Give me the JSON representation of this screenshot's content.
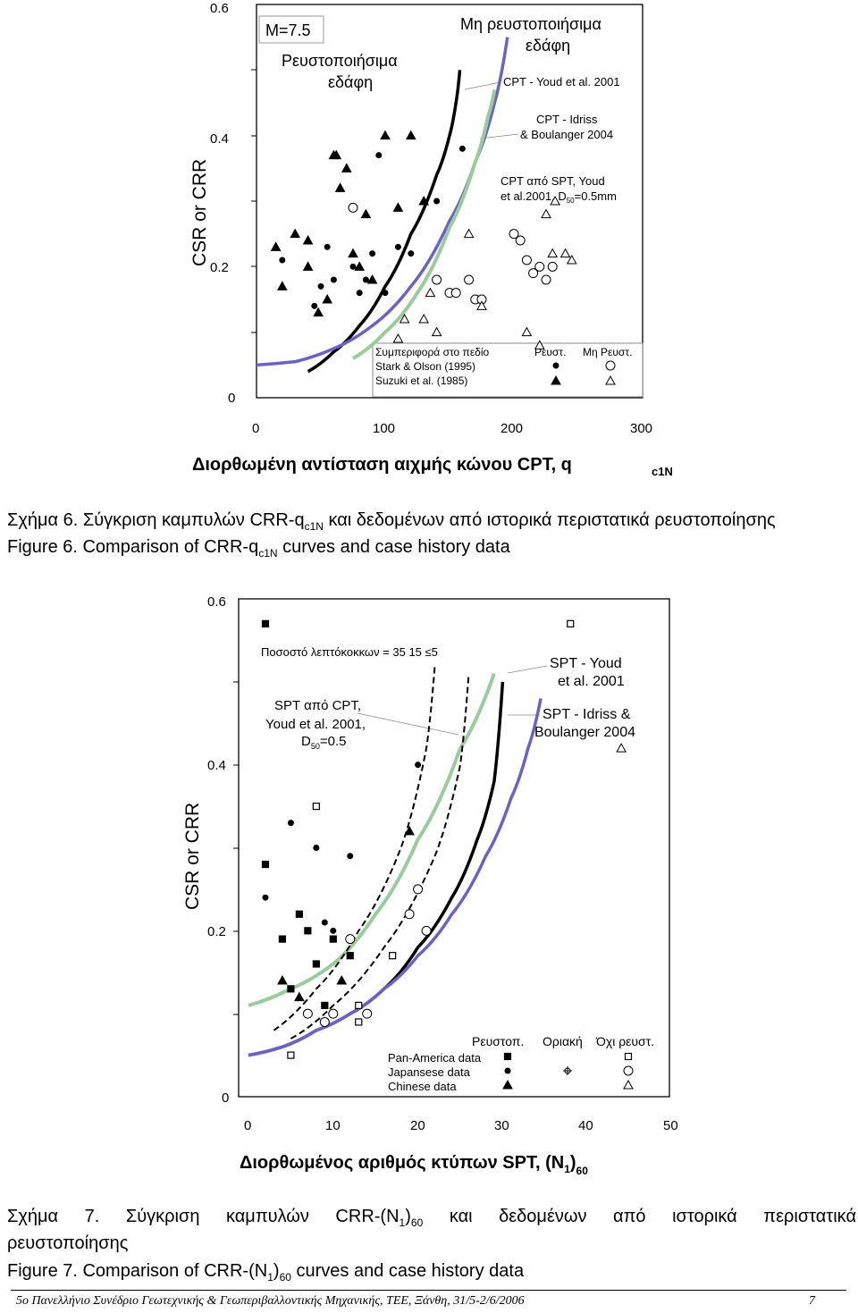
{
  "figure6": {
    "y_axis_label": "CSR or CRR",
    "x_axis_label": "Διορθωμένη αντίσταση αιχμής κώνου CPT, q",
    "x_axis_label_sub": "c1N",
    "y_ticks": [
      "0.6",
      "0.4",
      "0.2",
      "0"
    ],
    "x_ticks": [
      "0",
      "100",
      "200",
      "300"
    ],
    "magnitude_label": "M=7.5",
    "region_liquefiable": [
      "Ρευστοποιήσιμα",
      "εδάφη"
    ],
    "region_nonliquefiable": [
      "Μη ρευστοποιήσιμα",
      "εδάφη"
    ],
    "curve_label_youd": "CPT - Youd et al. 2001",
    "curve_label_idriss": [
      "CPT - Idriss",
      "& Boulanger 2004"
    ],
    "curve_label_spt": [
      "CPT από SPT, Youd",
      "et al.2001, D",
      "50",
      "=0.5mm"
    ],
    "legend": {
      "header": "Συμπεριφορά στο πεδίο",
      "col_liq": "Ρευστ.",
      "col_nonliq": "Μη Ρευστ.",
      "rows": [
        "Stark & Olson (1995)",
        "Suzuki et al. (1985)"
      ]
    },
    "caption_gr": "Σχήμα 6. Σύγκριση καμπυλών CRR-q",
    "caption_gr_sub": "c1N",
    "caption_gr_rest": "και δεδομένων από ιστορικά περιστατικά ρευστοποίησης",
    "caption_en": "Figure 6. Comparison of CRR-q",
    "caption_en_sub": "c1N",
    "caption_en_rest": "curves and case history data"
  },
  "figure7": {
    "y_axis_label": "CSR or CRR",
    "x_axis_label": "Διορθωμένος αριθμός κτύπων SPT, (N",
    "x_axis_label_sub1": "1",
    "x_axis_label_mid": ")",
    "x_axis_label_sub2": "60",
    "y_ticks": [
      "0.6",
      "0.4",
      "0.2",
      "0"
    ],
    "x_ticks": [
      "0",
      "10",
      "20",
      "30",
      "40",
      "50"
    ],
    "fines_label": "Ποσοστό λεπτόκοκκων = 35   15   ≤5",
    "curve_label_spt_cpt": [
      "SPT από CPT,",
      "Youd et al. 2001,",
      "D",
      "50",
      "=0.5"
    ],
    "curve_label_youd": [
      "SPT - Youd",
      "et al. 2001"
    ],
    "curve_label_idriss": [
      "SPT - Idriss &",
      "Boulanger 2004"
    ],
    "legend": {
      "col_liq": "Ρευστοπ.",
      "col_marg": "Οριακή",
      "col_nonliq": "Όχι ρευστ.",
      "rows": [
        "Pan-America data",
        "Japansese data",
        "Chinese data"
      ]
    },
    "caption_gr_1": "Σχήμα 7. Σύγκριση καμπυλών CRR-(N",
    "caption_gr_sub1": "1",
    "caption_gr_2": ")",
    "caption_gr_sub2": "60",
    "caption_gr_3": "και δεδομένων από ιστορικά περιστατικά",
    "caption_gr_line2": "ρευστοποίησης",
    "caption_en_1": "Figure 7. Comparison of CRR-(N",
    "caption_en_sub1": "1",
    "caption_en_2": ")",
    "caption_en_sub2": "60",
    "caption_en_3": "curves and case history data"
  },
  "footer": {
    "text": "5ο Πανελλήνιο Συνέδριο Γεωτεχνικής & Γεωπεριβαλλοντικής Μηχανικής, ΤΕΕ, Ξάνθη, 31/5-2/6/2006",
    "page": "7"
  },
  "colors": {
    "blue_curve": "#6a62c6",
    "green_curve": "#9acb9a",
    "black_curve": "#000000"
  },
  "chart_data": [
    {
      "type": "scatter",
      "xlim": [
        0,
        300
      ],
      "ylim": [
        0,
        0.6
      ],
      "grid": false,
      "legend_position": "bottom-right",
      "series": [
        {
          "name": "CPT - Youd et al. 2001",
          "type": "line",
          "x": [
            40,
            60,
            80,
            100,
            120,
            140,
            150,
            155,
            158
          ],
          "y": [
            0.04,
            0.07,
            0.11,
            0.17,
            0.25,
            0.34,
            0.4,
            0.45,
            0.5
          ]
        },
        {
          "name": "CPT - Idriss & Boulanger 2004",
          "type": "line",
          "x": [
            0,
            30,
            60,
            90,
            120,
            150,
            170,
            185,
            195
          ],
          "y": [
            0.05,
            0.055,
            0.075,
            0.11,
            0.17,
            0.27,
            0.36,
            0.45,
            0.55
          ]
        },
        {
          "name": "CPT από SPT, Youd et al.2001, D50=0.5mm",
          "type": "line",
          "x": [
            75,
            100,
            125,
            150,
            170,
            180,
            185
          ],
          "y": [
            0.06,
            0.1,
            0.16,
            0.26,
            0.36,
            0.43,
            0.47
          ]
        },
        {
          "name": "Stark & Olson (1995)",
          "role": "liquefied",
          "x": [
            20,
            50,
            55,
            80,
            90,
            95,
            100,
            110,
            120,
            140,
            160,
            45,
            60,
            75,
            85
          ],
          "y": [
            0.21,
            0.17,
            0.23,
            0.16,
            0.22,
            0.37,
            0.16,
            0.23,
            0.22,
            0.3,
            0.38,
            0.14,
            0.18,
            0.2,
            0.18
          ]
        },
        {
          "name": "Suzuki et al. (1985)",
          "role": "liquefied",
          "x": [
            15,
            20,
            30,
            40,
            48,
            60,
            62,
            65,
            70,
            80,
            85,
            90,
            100,
            110,
            120,
            130,
            40,
            55,
            75
          ],
          "y": [
            0.23,
            0.17,
            0.25,
            0.24,
            0.13,
            0.37,
            0.37,
            0.32,
            0.35,
            0.2,
            0.28,
            0.18,
            0.4,
            0.29,
            0.4,
            0.3,
            0.2,
            0.15,
            0.22
          ]
        },
        {
          "name": "Stark & Olson (1995)",
          "role": "non-liquefied",
          "x": [
            75,
            140,
            150,
            155,
            165,
            170,
            175,
            200,
            205,
            210,
            215,
            220,
            225,
            230
          ],
          "y": [
            0.29,
            0.18,
            0.16,
            0.16,
            0.18,
            0.15,
            0.15,
            0.25,
            0.24,
            0.21,
            0.19,
            0.2,
            0.18,
            0.2
          ]
        },
        {
          "name": "Suzuki et al. (1985)",
          "role": "non-liquefied",
          "x": [
            110,
            115,
            130,
            135,
            140,
            165,
            175,
            210,
            220,
            225,
            230,
            232,
            240,
            245
          ],
          "y": [
            0.09,
            0.12,
            0.12,
            0.16,
            0.1,
            0.25,
            0.14,
            0.1,
            0.08,
            0.28,
            0.22,
            0.3,
            0.22,
            0.21
          ]
        }
      ]
    },
    {
      "type": "scatter",
      "xlim": [
        0,
        50
      ],
      "ylim": [
        0,
        0.6
      ],
      "grid": false,
      "legend_position": "bottom-right",
      "series": [
        {
          "name": "SPT - Youd et al. 2001",
          "type": "line",
          "x": [
            0,
            4,
            8,
            12,
            16,
            20,
            24,
            27,
            29,
            30
          ],
          "y": [
            0.05,
            0.06,
            0.08,
            0.1,
            0.13,
            0.18,
            0.24,
            0.31,
            0.38,
            0.5
          ]
        },
        {
          "name": "SPT - Idriss & Boulanger 2004",
          "type": "line",
          "x": [
            0,
            4,
            8,
            12,
            16,
            20,
            24,
            28,
            31,
            33,
            34.5
          ],
          "y": [
            0.05,
            0.06,
            0.08,
            0.1,
            0.13,
            0.17,
            0.22,
            0.29,
            0.36,
            0.42,
            0.48
          ]
        },
        {
          "name": "SPT από CPT, Youd et al. 2001, D50=0.5",
          "type": "line",
          "x": [
            0,
            5,
            10,
            15,
            20,
            25,
            29
          ],
          "y": [
            0.11,
            0.13,
            0.16,
            0.22,
            0.31,
            0.42,
            0.51
          ]
        },
        {
          "name": "Ποσοστό λεπτόκοκκων = 35",
          "type": "line",
          "style": "dashed",
          "x": [
            3,
            8,
            13,
            18,
            21,
            22
          ],
          "y": [
            0.08,
            0.13,
            0.2,
            0.3,
            0.42,
            0.52
          ]
        },
        {
          "name": "Ποσοστό λεπτόκοκκων = 15",
          "type": "line",
          "style": "dashed",
          "x": [
            5,
            10,
            16,
            22,
            25,
            26
          ],
          "y": [
            0.07,
            0.11,
            0.18,
            0.29,
            0.4,
            0.51
          ]
        },
        {
          "name": "Pan-America data",
          "role": "liquefied",
          "x": [
            2,
            2,
            4,
            5,
            6,
            7,
            8,
            9,
            10,
            12
          ],
          "y": [
            0.28,
            0.57,
            0.19,
            0.13,
            0.22,
            0.2,
            0.16,
            0.11,
            0.19,
            0.17
          ]
        },
        {
          "name": "Japansese data",
          "role": "liquefied",
          "x": [
            2,
            5,
            6,
            8,
            9,
            10,
            12,
            20
          ],
          "y": [
            0.24,
            0.33,
            0.22,
            0.3,
            0.21,
            0.2,
            0.29,
            0.4
          ]
        },
        {
          "name": "Chinese data",
          "role": "liquefied",
          "x": [
            4,
            6,
            11,
            19
          ],
          "y": [
            0.14,
            0.12,
            0.14,
            0.32
          ]
        },
        {
          "name": "Pan-America data",
          "role": "non-liquefied",
          "x": [
            5,
            8,
            13,
            13,
            17,
            38
          ],
          "y": [
            0.05,
            0.35,
            0.09,
            0.11,
            0.17,
            0.57
          ]
        },
        {
          "name": "Japansese data",
          "role": "non-liquefied",
          "x": [
            7,
            9,
            10,
            12,
            14,
            19,
            20,
            21
          ],
          "y": [
            0.1,
            0.09,
            0.1,
            0.19,
            0.1,
            0.22,
            0.25,
            0.2
          ]
        },
        {
          "name": "Chinese data",
          "role": "non-liquefied",
          "x": [
            44
          ],
          "y": [
            0.42
          ]
        }
      ]
    }
  ]
}
